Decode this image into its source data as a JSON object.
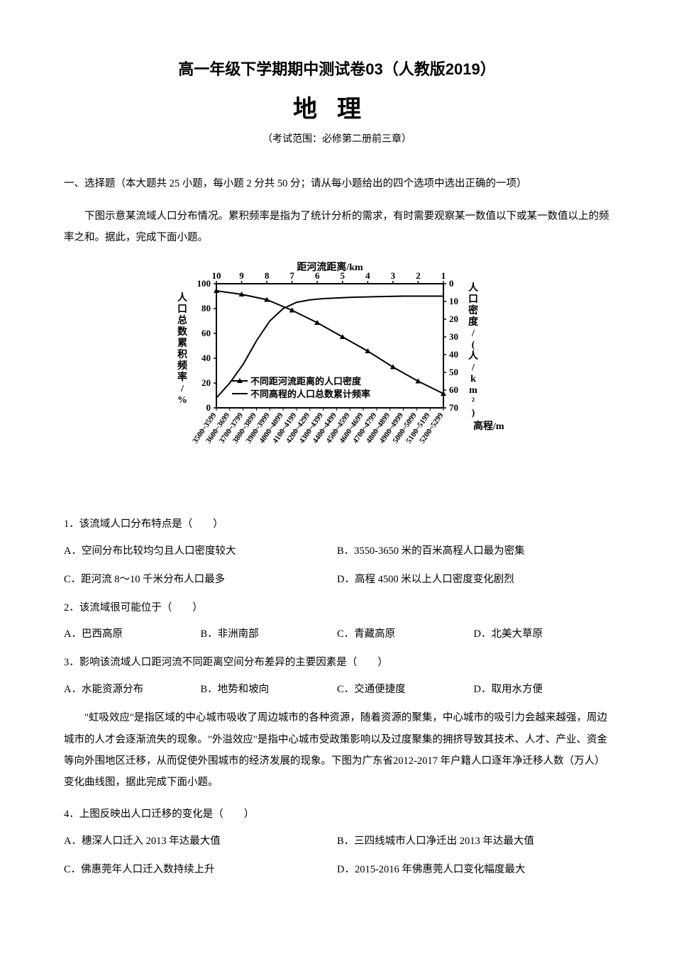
{
  "header": {
    "main_title": "高一年级下学期期中测试卷03（人教版2019）",
    "subject": "地理",
    "scope": "（考试范围：必修第二册前三章）"
  },
  "section1": {
    "heading": "一、选择题（本大题共 25 小题，每小题 2 分共 50 分；请从每小题给出的四个选项中选出正确的一项）",
    "passage1": "下图示意某流域人口分布情况。累积频率是指为了统计分析的需求，有时需要观察某一数值以下或某一数值以上的频率之和。据此，完成下面小题。"
  },
  "figure1": {
    "type": "dual-axis-line",
    "top_axis": {
      "label": "距河流距离/km",
      "ticks": [
        "10",
        "9",
        "8",
        "7",
        "6",
        "5",
        "4",
        "3",
        "2",
        "1"
      ]
    },
    "bottom_axis": {
      "label": "高程/m",
      "ticks": [
        "3500~3599",
        "3600~3699",
        "3700~3799",
        "3800~3899",
        "3900~3999",
        "4000~4099",
        "4100~4199",
        "4200~4299",
        "4300~4399",
        "4400~4499",
        "4500~4599",
        "4600~4699",
        "4700~4799",
        "4800~4899",
        "4900~4999",
        "5000~5099",
        "5100~5199",
        "5200~5299"
      ]
    },
    "left_axis": {
      "label": "人口总数累积频率/%",
      "ticks": [
        0,
        20,
        40,
        60,
        80,
        100
      ]
    },
    "right_axis": {
      "label": "人口密度/(人/km²)",
      "ticks": [
        0,
        10,
        20,
        30,
        40,
        50,
        60,
        70
      ]
    },
    "series": [
      {
        "name": "不同距河流距离的人口密度",
        "marker": "triangle",
        "axis": "right",
        "x": [
          10,
          9,
          8,
          7,
          6,
          5,
          4,
          3,
          2,
          1
        ],
        "y_density": [
          4,
          6,
          9,
          15,
          22,
          30,
          38,
          47,
          55,
          62
        ],
        "color": "#000000",
        "linewidth": 2
      },
      {
        "name": "不同高程的人口总数累计频率",
        "marker": "none",
        "axis": "left",
        "x_index": [
          0,
          1,
          2,
          3,
          4,
          5,
          6,
          7,
          8,
          9,
          10,
          11,
          12,
          13,
          14,
          15,
          16,
          17
        ],
        "y_cumfreq": [
          8,
          20,
          35,
          54,
          70,
          80,
          85,
          87,
          88,
          88.5,
          89,
          89.3,
          89.6,
          89.8,
          90,
          90,
          90,
          90
        ],
        "color": "#000000",
        "linewidth": 2
      }
    ],
    "legend_labels": [
      "不同距河流距离的人口密度",
      "不同高程的人口总数累计频率"
    ],
    "background_color": "#ffffff",
    "grid": false,
    "font_sizes": {
      "axis_label": 14,
      "tick": 11,
      "legend": 13
    }
  },
  "questions": {
    "q1": {
      "stem": "1．该流域人口分布特点是（　　）",
      "choices": {
        "A": "A．空间分布比较均匀且人口密度较大",
        "B": "B．3550-3650 米的百米高程人口最为密集",
        "C": "C．距河流 8～10 千米分布人口最多",
        "D": "D．高程 4500 米以上人口密度变化剧烈"
      }
    },
    "q2": {
      "stem": "2．该流域很可能位于（　　）",
      "choices": {
        "A": "A．巴西高原",
        "B": "B．非洲南部",
        "C": "C．青藏高原",
        "D": "D．北美大草原"
      }
    },
    "q3": {
      "stem": "3．影响该流域人口距河流不同距离空间分布差异的主要因素是（　　）",
      "choices": {
        "A": "A．水能资源分布",
        "B": "B．地势和坡向",
        "C": "C．交通便捷度",
        "D": "D．取用水方便"
      }
    },
    "passage2": "\"虹吸效应\"是指区域的中心城市吸收了周边城市的各种资源，随着资源的聚集，中心城市的吸引力会越来越强，周边城市的人才会逐渐流失的现象。\"外溢效应\"是指中心城市受政策影响以及过度聚集的拥挤导致其技术、人才、产业、资金等向外围地区迁移，从而促使外围城市的经济发展的现象。下图为广东省2012-2017 年户籍人口逐年净迁移人数（万人）变化曲线图，据此完成下面小题。",
    "q4": {
      "stem": "4．上图反映出人口迁移的变化是（　　）",
      "choices": {
        "A": "A．穗深人口迁入 2013 年达最大值",
        "B": "B．三四线城市人口净迁出 2013 年达最大值",
        "C": "C．佛惠莞年人口迁入数持续上升",
        "D": "D．2015-2016 年佛惠莞人口变化幅度最大"
      }
    }
  }
}
